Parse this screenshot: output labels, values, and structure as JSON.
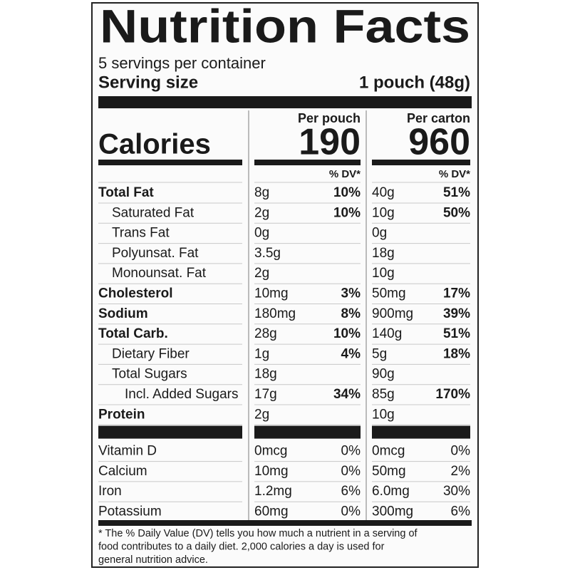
{
  "header": {
    "title": "Nutrition Facts",
    "servings": "5 servings per container",
    "serving_size_label": "Serving size",
    "serving_size_value": "1 pouch (48g)"
  },
  "calories": {
    "label": "Calories",
    "columns": [
      {
        "heading": "Per pouch",
        "value": "190"
      },
      {
        "heading": "Per carton",
        "value": "960"
      }
    ]
  },
  "dv_headings": [
    "% DV*",
    "% DV*"
  ],
  "nutrients": [
    {
      "name": "Total Fat",
      "cols": [
        {
          "amount": "8g",
          "dv": "10%"
        },
        {
          "amount": "40g",
          "dv": "51%"
        }
      ],
      "sub": [
        {
          "name": "Saturated Fat",
          "cols": [
            {
              "amount": "2g",
              "dv": "10%"
            },
            {
              "amount": "10g",
              "dv": "50%"
            }
          ]
        },
        {
          "name": "Trans Fat",
          "cols": [
            {
              "amount": "0g"
            },
            {
              "amount": "0g"
            }
          ]
        },
        {
          "name": "Polyunsat. Fat",
          "cols": [
            {
              "amount": "3.5g"
            },
            {
              "amount": "18g"
            }
          ]
        },
        {
          "name": "Monounsat. Fat",
          "cols": [
            {
              "amount": "2g"
            },
            {
              "amount": "10g"
            }
          ]
        }
      ]
    },
    {
      "name": "Cholesterol",
      "cols": [
        {
          "amount": "10mg",
          "dv": "3%"
        },
        {
          "amount": "50mg",
          "dv": "17%"
        }
      ]
    },
    {
      "name": "Sodium",
      "cols": [
        {
          "amount": "180mg",
          "dv": "8%"
        },
        {
          "amount": "900mg",
          "dv": "39%"
        }
      ]
    },
    {
      "name": "Total Carb.",
      "cols": [
        {
          "amount": "28g",
          "dv": "10%"
        },
        {
          "amount": "140g",
          "dv": "51%"
        }
      ],
      "sub": [
        {
          "name": "Dietary Fiber",
          "cols": [
            {
              "amount": "1g",
              "dv": "4%"
            },
            {
              "amount": "5g",
              "dv": "18%"
            }
          ]
        },
        {
          "name": "Total Sugars",
          "cols": [
            {
              "amount": "18g"
            },
            {
              "amount": "90g"
            }
          ],
          "sub": [
            {
              "name": "Incl. Added Sugars",
              "cols": [
                {
                  "amount": "17g",
                  "dv": "34%"
                },
                {
                  "amount": "85g",
                  "dv": "170%"
                }
              ]
            }
          ]
        }
      ]
    },
    {
      "name": "Protein",
      "cols": [
        {
          "amount": "2g"
        },
        {
          "amount": "10g"
        }
      ]
    }
  ],
  "vitamins": [
    {
      "name": "Vitamin D",
      "cols": [
        {
          "amount": "0mcg",
          "dv": "0%"
        },
        {
          "amount": "0mcg",
          "dv": "0%"
        }
      ]
    },
    {
      "name": "Calcium",
      "cols": [
        {
          "amount": "10mg",
          "dv": "0%"
        },
        {
          "amount": "50mg",
          "dv": "2%"
        }
      ]
    },
    {
      "name": "Iron",
      "cols": [
        {
          "amount": "1.2mg",
          "dv": "6%"
        },
        {
          "amount": "6.0mg",
          "dv": "30%"
        }
      ]
    },
    {
      "name": "Potassium",
      "cols": [
        {
          "amount": "60mg",
          "dv": "0%"
        },
        {
          "amount": "300mg",
          "dv": "6%"
        }
      ]
    }
  ],
  "footnote": [
    "* The % Daily Value (DV) tells you how much a nutrient in a serving of",
    "food contributes to a daily diet. 2,000 calories a day is used for",
    "general nutrition advice."
  ]
}
